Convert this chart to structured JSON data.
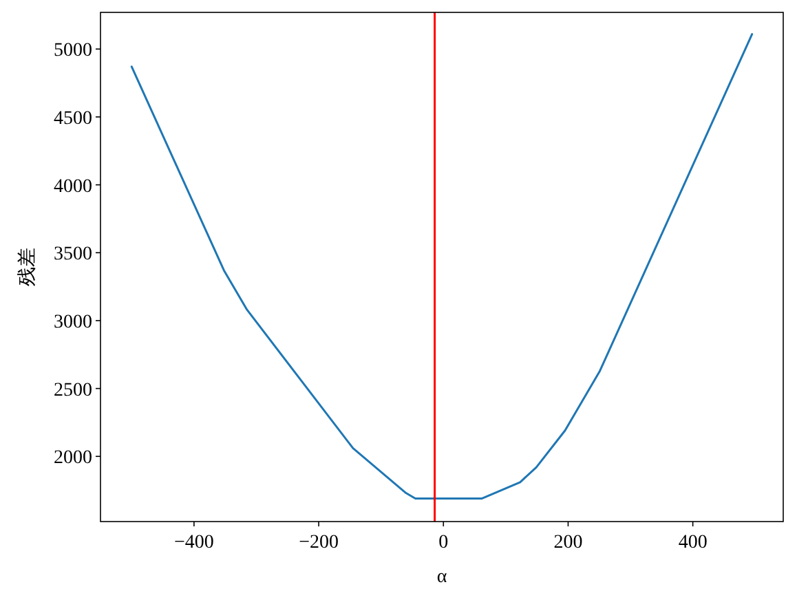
{
  "chart_data": {
    "type": "line",
    "xlabel": "α",
    "ylabel": "残差",
    "x": [
      -500,
      -352,
      -315,
      -145,
      -60,
      -45,
      62,
      123,
      149,
      195,
      251,
      495
    ],
    "series": [
      {
        "color": "#1f77b4",
        "values": [
          4870,
          3370,
          3080,
          2060,
          1730,
          1690,
          1690,
          1810,
          1920,
          2190,
          2630,
          5110
        ]
      }
    ],
    "xlim": [
      -550,
      545
    ],
    "ylim": [
      1520,
      5270
    ],
    "xticks": [
      -400,
      -200,
      0,
      200,
      400
    ],
    "yticks": [
      2000,
      2500,
      3000,
      3500,
      4000,
      4500,
      5000
    ],
    "ref_lines": [
      {
        "axis": "x",
        "value": -14,
        "color": "#ff0000"
      }
    ],
    "grid": false
  }
}
